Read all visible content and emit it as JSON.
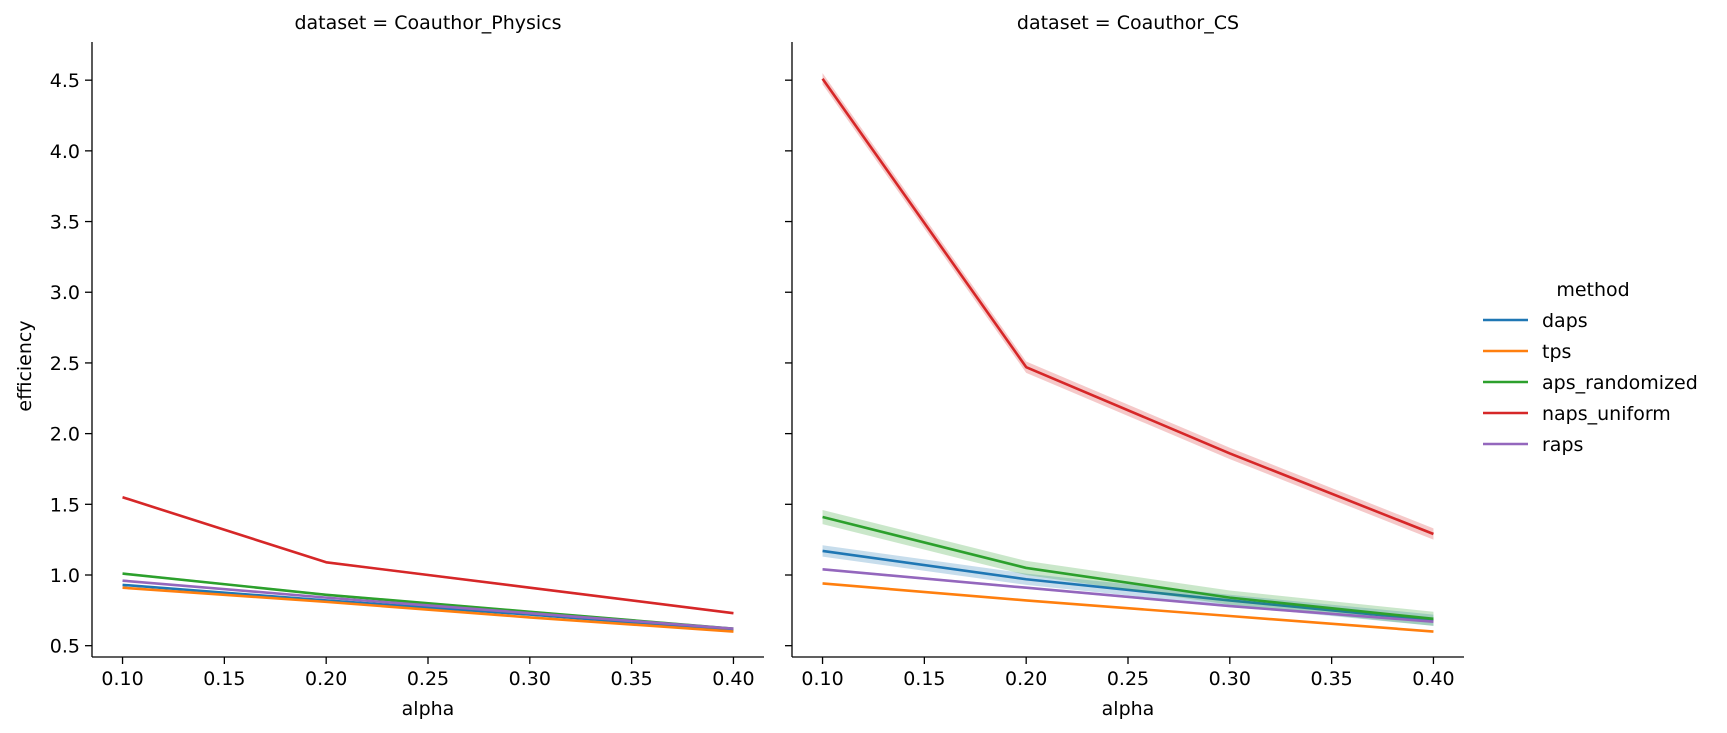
{
  "chart_data": {
    "type": "line",
    "ylabel": "efficiency",
    "yticks": [
      "0.5",
      "1.0",
      "1.5",
      "2.0",
      "2.5",
      "3.0",
      "3.5",
      "4.0",
      "4.5"
    ],
    "xticks": [
      "0.10",
      "0.15",
      "0.20",
      "0.25",
      "0.30",
      "0.35",
      "0.40"
    ],
    "legend": {
      "title": "method",
      "placement": "right",
      "entries": [
        {
          "name": "daps",
          "color": "#1f77b4"
        },
        {
          "name": "tps",
          "color": "#ff7f0e"
        },
        {
          "name": "aps_randomized",
          "color": "#2ca02c"
        },
        {
          "name": "naps_uniform",
          "color": "#d62728"
        },
        {
          "name": "raps",
          "color": "#9467bd"
        }
      ]
    },
    "panels": [
      {
        "title": "dataset = Coauthor_Physics",
        "xlabel": "alpha",
        "x": [
          0.1,
          0.2,
          0.3,
          0.4
        ],
        "xlim": [
          0.085,
          0.415
        ],
        "ylim": [
          0.42,
          4.77
        ],
        "series": [
          {
            "name": "daps",
            "color": "#1f77b4",
            "values": [
              0.93,
              0.82,
              0.72,
              0.61
            ],
            "ci": 0.005
          },
          {
            "name": "tps",
            "color": "#ff7f0e",
            "values": [
              0.91,
              0.81,
              0.7,
              0.6
            ],
            "ci": 0.005
          },
          {
            "name": "aps_randomized",
            "color": "#2ca02c",
            "values": [
              1.01,
              0.86,
              0.74,
              0.62
            ],
            "ci": 0.008
          },
          {
            "name": "naps_uniform",
            "color": "#d62728",
            "values": [
              1.55,
              1.09,
              0.91,
              0.73
            ],
            "ci": 0.008
          },
          {
            "name": "raps",
            "color": "#9467bd",
            "values": [
              0.96,
              0.84,
              0.73,
              0.62
            ],
            "ci": 0.005
          }
        ]
      },
      {
        "title": "dataset = Coauthor_CS",
        "xlabel": "alpha",
        "x": [
          0.1,
          0.2,
          0.3,
          0.4
        ],
        "xlim": [
          0.085,
          0.415
        ],
        "ylim": [
          0.42,
          4.77
        ],
        "series": [
          {
            "name": "daps",
            "color": "#1f77b4",
            "values": [
              1.17,
              0.97,
              0.82,
              0.68
            ],
            "ci": 0.04
          },
          {
            "name": "tps",
            "color": "#ff7f0e",
            "values": [
              0.94,
              0.82,
              0.71,
              0.6
            ],
            "ci": 0.005
          },
          {
            "name": "aps_randomized",
            "color": "#2ca02c",
            "values": [
              1.41,
              1.05,
              0.84,
              0.69
            ],
            "ci": 0.05
          },
          {
            "name": "naps_uniform",
            "color": "#d62728",
            "values": [
              4.51,
              2.47,
              1.86,
              1.29
            ],
            "ci": 0.04
          },
          {
            "name": "raps",
            "color": "#9467bd",
            "values": [
              1.04,
              0.91,
              0.78,
              0.67
            ],
            "ci": 0.008
          }
        ]
      }
    ]
  }
}
